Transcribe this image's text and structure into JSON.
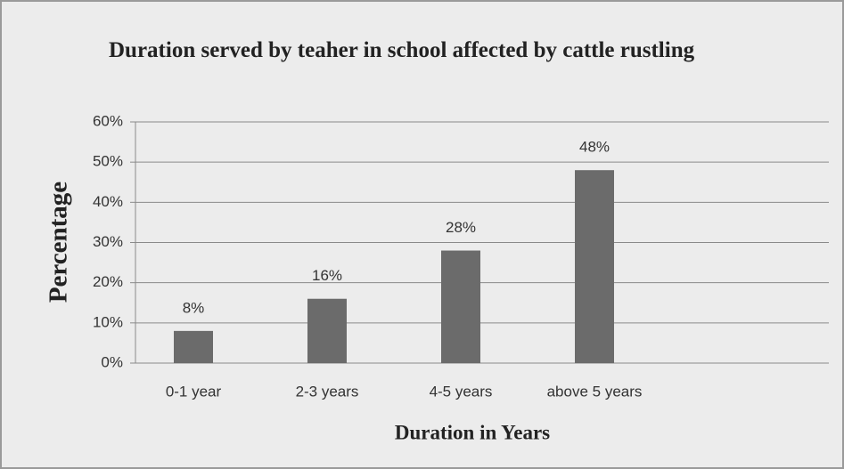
{
  "chart_data": {
    "type": "bar",
    "title": "Duration served by teaher in school affected by cattle rustling",
    "x_label": "Duration in Years",
    "y_label": "Percentage",
    "categories": [
      "0-1 year",
      "2-3 years",
      "4-5 years",
      "above 5 years"
    ],
    "values": [
      8,
      16,
      28,
      48
    ],
    "value_labels": [
      "8%",
      "16%",
      "28%",
      "48%"
    ],
    "color": "#6b6b6b",
    "ylim": [
      0,
      60
    ],
    "yticks": [
      {
        "value": 0,
        "label": "0%"
      },
      {
        "value": 10,
        "label": "10%"
      },
      {
        "value": 20,
        "label": "20%"
      },
      {
        "value": 30,
        "label": "30%"
      },
      {
        "value": 40,
        "label": "40%"
      },
      {
        "value": 50,
        "label": "50%"
      },
      {
        "value": 60,
        "label": "60%"
      }
    ],
    "grid": true
  }
}
